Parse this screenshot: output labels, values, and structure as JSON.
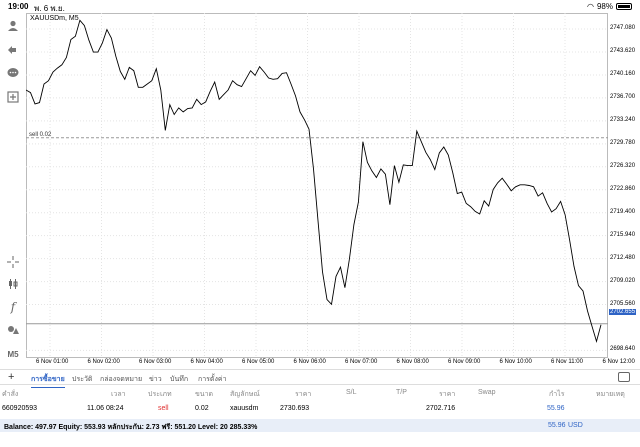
{
  "status_bar": {
    "time": "19:00",
    "date": "พ. 6 พ.ย.",
    "battery": "98%"
  },
  "chart": {
    "symbol": "XAUUSDm, M5",
    "sell_line_label": "sell 0.02",
    "current_price": "2702.655",
    "price_ticks": [
      "2747.080",
      "2743.620",
      "2740.160",
      "2736.700",
      "2733.240",
      "2729.780",
      "2726.320",
      "2722.860",
      "2719.400",
      "2715.940",
      "2712.480",
      "2709.020",
      "2705.560",
      "2698.640"
    ],
    "time_ticks": [
      "6 Nov 01:00",
      "6 Nov 02:00",
      "6 Nov 03:00",
      "6 Nov 04:00",
      "6 Nov 05:00",
      "6 Nov 06:00",
      "6 Nov 07:00",
      "6 Nov 08:00",
      "6 Nov 09:00",
      "6 Nov 10:00",
      "6 Nov 11:00",
      "6 Nov 12:00"
    ]
  },
  "chart_data": {
    "type": "line",
    "title": "XAUUSDm, M5",
    "series": [
      {
        "values": [
          2737.9,
          2737.5,
          2735.8,
          2736.0,
          2738.8,
          2739.3,
          2740.6,
          2741.2,
          2741.7,
          2742.8,
          2745.5,
          2746.0,
          2748.4,
          2747.6,
          2745.4,
          2743.6,
          2743.6,
          2745.0,
          2747.0,
          2745.7,
          2743.0,
          2740.7,
          2739.5,
          2741.3,
          2740.8,
          2738.3,
          2738.3,
          2738.8,
          2739.3,
          2741.1,
          2737.9,
          2731.8,
          2735.7,
          2734.2,
          2735.2,
          2734.6,
          2735.1,
          2735.2,
          2736.5,
          2735.7,
          2736.1,
          2737.7,
          2739.1,
          2736.5,
          2737.2,
          2737.9,
          2739.3,
          2738.7,
          2738.4,
          2739.6,
          2740.8,
          2740.1,
          2741.4,
          2740.6,
          2739.7,
          2739.5,
          2739.6,
          2740.4,
          2740.5,
          2738.8,
          2737.0,
          2734.6,
          2733.4,
          2732.0,
          2726.0,
          2718.2,
          2710.5,
          2706.3,
          2705.6,
          2709.8,
          2711.2,
          2708.1,
          2712.4,
          2717.6,
          2721.0,
          2730.1,
          2727.0,
          2725.7,
          2724.7,
          2726.0,
          2725.2,
          2720.6,
          2726.5,
          2724.0,
          2726.6,
          2726.5,
          2726.5,
          2731.7,
          2730.1,
          2728.5,
          2727.4,
          2725.9,
          2728.4,
          2729.3,
          2728.1,
          2725.4,
          2722.3,
          2722.5,
          2720.8,
          2720.3,
          2719.6,
          2719.2,
          2721.2,
          2720.4,
          2722.9,
          2723.9,
          2724.6,
          2723.7,
          2722.7,
          2723.3,
          2723.6,
          2723.6,
          2723.5,
          2723.3,
          2721.9,
          2722.4,
          2720.8,
          2719.5,
          2720.0,
          2721.1,
          2719.1,
          2715.3,
          2711.3,
          2708.4,
          2707.6,
          2704.6,
          2702.3,
          2700.0,
          2702.5
        ],
        "x_range": [
          "6 Nov 00:35",
          "6 Nov 12:00"
        ]
      }
    ],
    "ylim": [
      2697.5,
      2749.5
    ],
    "sell_level": 2730.69,
    "current_price": 2702.655,
    "grid": true
  },
  "tabs": [
    "การซื้อขาย",
    "ประวัติ",
    "กล่องจดหมาย",
    "ข่าว",
    "บันทึก",
    "การตั้งค่า"
  ],
  "table": {
    "headers": [
      "คำสั่ง",
      "เวลา",
      "ประเภท",
      "ขนาด",
      "สัญลักษณ์",
      "ราคา",
      "S/L",
      "T/P",
      "ราคา",
      "Swap",
      "กำไร",
      "หมายเหตุ"
    ],
    "rows": [
      [
        "660920593",
        "11.06 08:24",
        "sell",
        "0.02",
        "xauusdm",
        "2730.693",
        "",
        "",
        "2702.716",
        "",
        "55.96",
        ""
      ]
    ]
  },
  "balance": {
    "summary": "Balance: 497.97 Equity: 553.93 หลักประกัน: 2.73 ฟรี: 551.20 Level: 20 285.33%",
    "total": "55.96",
    "currency": "USD"
  },
  "colors": {
    "accent": "#2e63c5",
    "sell": "#e03030"
  }
}
